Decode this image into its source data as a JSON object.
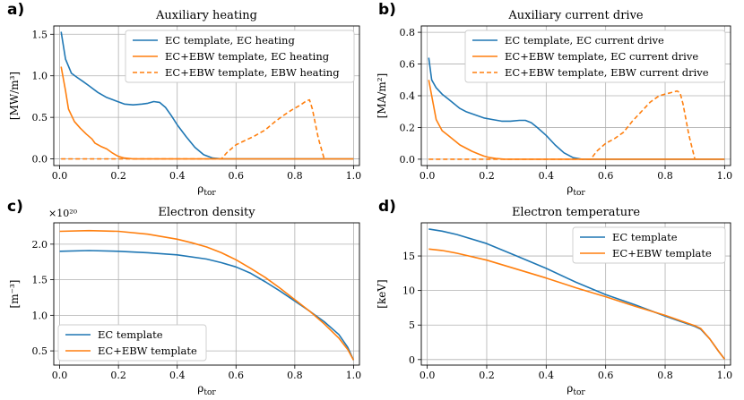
{
  "colors": {
    "ec": "#1f77b4",
    "ebw": "#ff7f0e"
  },
  "chart_data": [
    {
      "panel": "a)",
      "type": "line",
      "title": "Auxiliary heating",
      "xlabel": "ρ",
      "xlabel_sub": "tor",
      "ylabel": "[MW/m³]",
      "xlim": [
        -0.02,
        1.02
      ],
      "ylim": [
        -0.08,
        1.6
      ],
      "xticks": [
        0.0,
        0.2,
        0.4,
        0.6,
        0.8,
        1.0
      ],
      "xtick_labels": [
        "0.0",
        "0.2",
        "0.4",
        "0.6",
        "0.8",
        "1.0"
      ],
      "yticks": [
        0.0,
        0.5,
        1.0,
        1.5
      ],
      "ytick_labels": [
        "0.0",
        "0.5",
        "1.0",
        "1.5"
      ],
      "legend": "top-right",
      "series": [
        {
          "name": "EC template, EC heating",
          "color": "#1f77b4",
          "dash": false,
          "x": [
            0.005,
            0.02,
            0.04,
            0.06,
            0.08,
            0.1,
            0.13,
            0.16,
            0.19,
            0.22,
            0.25,
            0.28,
            0.3,
            0.32,
            0.34,
            0.36,
            0.38,
            0.4,
            0.43,
            0.46,
            0.49,
            0.52,
            0.55,
            1.0
          ],
          "y": [
            1.53,
            1.2,
            1.03,
            0.98,
            0.93,
            0.88,
            0.8,
            0.74,
            0.7,
            0.66,
            0.65,
            0.66,
            0.67,
            0.69,
            0.68,
            0.62,
            0.52,
            0.41,
            0.27,
            0.14,
            0.05,
            0.01,
            0.0,
            0.0
          ]
        },
        {
          "name": "EC+EBW template, EC heating",
          "color": "#ff7f0e",
          "dash": false,
          "x": [
            0.005,
            0.02,
            0.03,
            0.05,
            0.07,
            0.09,
            0.11,
            0.12,
            0.14,
            0.16,
            0.18,
            0.2,
            0.22,
            0.25,
            1.0
          ],
          "y": [
            1.11,
            0.82,
            0.6,
            0.45,
            0.37,
            0.3,
            0.24,
            0.19,
            0.15,
            0.12,
            0.07,
            0.03,
            0.01,
            0.0,
            0.0
          ]
        },
        {
          "name": "EC+EBW template, EBW heating",
          "color": "#ff7f0e",
          "dash": true,
          "x": [
            0.005,
            0.55,
            0.57,
            0.6,
            0.63,
            0.66,
            0.7,
            0.73,
            0.76,
            0.79,
            0.82,
            0.84,
            0.85,
            0.86,
            0.88,
            0.9
          ],
          "y": [
            0.0,
            0.0,
            0.08,
            0.17,
            0.22,
            0.27,
            0.35,
            0.44,
            0.52,
            0.59,
            0.65,
            0.7,
            0.71,
            0.6,
            0.25,
            0.0
          ]
        }
      ]
    },
    {
      "panel": "b)",
      "type": "line",
      "title": "Auxiliary current drive",
      "xlabel": "ρ",
      "xlabel_sub": "tor",
      "ylabel": "[MA/m²]",
      "xlim": [
        -0.02,
        1.02
      ],
      "ylim": [
        -0.04,
        0.84
      ],
      "xticks": [
        0.0,
        0.2,
        0.4,
        0.6,
        0.8,
        1.0
      ],
      "xtick_labels": [
        "0.0",
        "0.2",
        "0.4",
        "0.6",
        "0.8",
        "1.0"
      ],
      "yticks": [
        0.0,
        0.2,
        0.4,
        0.6,
        0.8
      ],
      "ytick_labels": [
        "0.0",
        "0.2",
        "0.4",
        "0.6",
        "0.8"
      ],
      "legend": "top-right",
      "series": [
        {
          "name": "EC template, EC current drive",
          "color": "#1f77b4",
          "dash": false,
          "x": [
            0.005,
            0.015,
            0.03,
            0.05,
            0.07,
            0.09,
            0.11,
            0.13,
            0.16,
            0.19,
            0.22,
            0.25,
            0.28,
            0.31,
            0.33,
            0.35,
            0.37,
            0.4,
            0.43,
            0.46,
            0.49,
            0.52,
            0.55,
            1.0
          ],
          "y": [
            0.64,
            0.5,
            0.45,
            0.41,
            0.38,
            0.35,
            0.32,
            0.3,
            0.28,
            0.26,
            0.25,
            0.24,
            0.24,
            0.245,
            0.245,
            0.23,
            0.2,
            0.15,
            0.09,
            0.04,
            0.01,
            0.0,
            0.0,
            0.0
          ]
        },
        {
          "name": "EC+EBW template, EC current drive",
          "color": "#ff7f0e",
          "dash": false,
          "x": [
            0.005,
            0.015,
            0.03,
            0.05,
            0.07,
            0.09,
            0.11,
            0.13,
            0.15,
            0.17,
            0.19,
            0.21,
            0.23,
            0.26,
            1.0
          ],
          "y": [
            0.5,
            0.4,
            0.25,
            0.18,
            0.15,
            0.12,
            0.09,
            0.07,
            0.05,
            0.035,
            0.02,
            0.01,
            0.005,
            0.0,
            0.0
          ]
        },
        {
          "name": "EC+EBW template, EBW current drive",
          "color": "#ff7f0e",
          "dash": true,
          "x": [
            0.005,
            0.55,
            0.57,
            0.6,
            0.63,
            0.66,
            0.69,
            0.72,
            0.75,
            0.78,
            0.8,
            0.82,
            0.84,
            0.85,
            0.86,
            0.88,
            0.9
          ],
          "y": [
            0.0,
            0.0,
            0.05,
            0.1,
            0.13,
            0.17,
            0.24,
            0.3,
            0.36,
            0.4,
            0.41,
            0.42,
            0.43,
            0.42,
            0.35,
            0.15,
            0.0
          ]
        }
      ]
    },
    {
      "panel": "c)",
      "type": "line",
      "title": "Electron density",
      "xlabel": "ρ",
      "xlabel_sub": "tor",
      "ylabel": "[m⁻³]",
      "offset_text": "×10²⁰",
      "xlim": [
        -0.02,
        1.02
      ],
      "ylim": [
        0.3,
        2.3
      ],
      "xticks": [
        0.0,
        0.2,
        0.4,
        0.6,
        0.8,
        1.0
      ],
      "xtick_labels": [
        "0.0",
        "0.2",
        "0.4",
        "0.6",
        "0.8",
        "1.0"
      ],
      "yticks": [
        0.5,
        1.0,
        1.5,
        2.0
      ],
      "ytick_labels": [
        "0.5",
        "1.0",
        "1.5",
        "2.0"
      ],
      "legend": "bottom-left",
      "series": [
        {
          "name": "EC template",
          "color": "#1f77b4",
          "dash": false,
          "x": [
            0.0,
            0.1,
            0.2,
            0.3,
            0.4,
            0.5,
            0.55,
            0.6,
            0.65,
            0.7,
            0.75,
            0.8,
            0.85,
            0.9,
            0.95,
            0.98,
            1.0
          ],
          "y": [
            1.9,
            1.91,
            1.9,
            1.88,
            1.85,
            1.79,
            1.74,
            1.68,
            1.59,
            1.47,
            1.34,
            1.2,
            1.06,
            0.91,
            0.73,
            0.55,
            0.37
          ]
        },
        {
          "name": "EC+EBW template",
          "color": "#ff7f0e",
          "dash": false,
          "x": [
            0.0,
            0.1,
            0.2,
            0.3,
            0.4,
            0.45,
            0.5,
            0.55,
            0.6,
            0.65,
            0.7,
            0.75,
            0.8,
            0.85,
            0.9,
            0.95,
            0.98,
            1.0
          ],
          "y": [
            2.18,
            2.19,
            2.18,
            2.14,
            2.07,
            2.02,
            1.96,
            1.88,
            1.78,
            1.66,
            1.53,
            1.38,
            1.22,
            1.06,
            0.88,
            0.68,
            0.52,
            0.37
          ]
        }
      ]
    },
    {
      "panel": "d)",
      "type": "line",
      "title": "Electron temperature",
      "xlabel": "ρ",
      "xlabel_sub": "tor",
      "ylabel": "[keV]",
      "xlim": [
        -0.02,
        1.02
      ],
      "ylim": [
        -0.8,
        19.8
      ],
      "xticks": [
        0.0,
        0.2,
        0.4,
        0.6,
        0.8,
        1.0
      ],
      "xtick_labels": [
        "0.0",
        "0.2",
        "0.4",
        "0.6",
        "0.8",
        "1.0"
      ],
      "yticks": [
        0,
        5,
        10,
        15
      ],
      "ytick_labels": [
        "0",
        "5",
        "10",
        "15"
      ],
      "legend": "top-right",
      "series": [
        {
          "name": "EC template",
          "color": "#1f77b4",
          "dash": false,
          "x": [
            0.005,
            0.05,
            0.1,
            0.2,
            0.3,
            0.4,
            0.5,
            0.6,
            0.7,
            0.8,
            0.9,
            0.92,
            0.95,
            0.98,
            1.0
          ],
          "y": [
            18.9,
            18.6,
            18.1,
            16.8,
            15.0,
            13.2,
            11.2,
            9.4,
            7.9,
            6.3,
            4.8,
            4.4,
            3.0,
            1.2,
            0.05
          ]
        },
        {
          "name": "EC+EBW template",
          "color": "#ff7f0e",
          "dash": false,
          "x": [
            0.005,
            0.05,
            0.1,
            0.2,
            0.3,
            0.4,
            0.5,
            0.6,
            0.7,
            0.8,
            0.9,
            0.92,
            0.95,
            0.98,
            1.0
          ],
          "y": [
            16.0,
            15.8,
            15.4,
            14.4,
            13.1,
            11.8,
            10.4,
            9.1,
            7.7,
            6.4,
            4.9,
            4.5,
            3.0,
            1.2,
            0.05
          ]
        }
      ]
    }
  ]
}
